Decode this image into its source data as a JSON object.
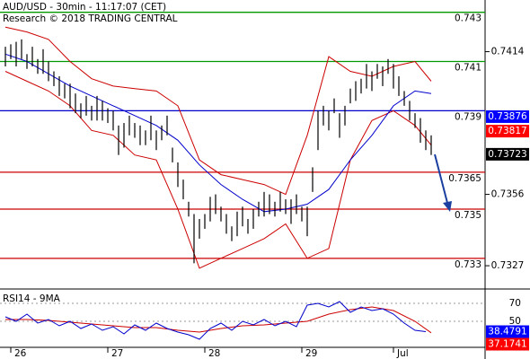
{
  "chart_data": {
    "type": "ohlc",
    "title": "AUD/USD - 30min - 11:17:07 (CET)",
    "subtitle": "Research © 2018 TRADING CENTRAL",
    "xlim": [
      -1,
      89
    ],
    "xticks": [
      {
        "value": 1,
        "label": "26"
      },
      {
        "value": 19,
        "label": "27"
      },
      {
        "value": 37,
        "label": "28"
      },
      {
        "value": 55,
        "label": "29"
      },
      {
        "value": 72,
        "label": "Jul"
      }
    ],
    "ylim": [
      0.7319,
      0.7435
    ],
    "yticks": [
      0.7327,
      0.7356,
      0.7414
    ],
    "bar_color": "#000000",
    "high": [
      0.7416,
      0.7417,
      0.7418,
      0.7419,
      0.7413,
      0.7416,
      0.7411,
      0.7415,
      0.741,
      0.7406,
      0.7404,
      0.7401,
      0.7401,
      0.7397,
      0.7393,
      0.7396,
      0.7392,
      0.7396,
      0.7394,
      0.7391,
      0.739,
      0.7384,
      0.7385,
      0.7388,
      0.7385,
      0.7384,
      0.7382,
      0.7388,
      0.7382,
      0.7384,
      0.7388,
      0.7375,
      0.7369,
      0.7362,
      0.7353,
      0.7348,
      0.7346,
      0.7348,
      0.7355,
      0.7356,
      0.7351,
      0.7348,
      0.7343,
      0.7349,
      0.7351,
      0.7346,
      0.735,
      0.7353,
      0.7357,
      0.7356,
      0.7353,
      0.7357,
      0.7354,
      0.7354,
      0.7356,
      0.7351,
      0.7351,
      0.7367,
      0.739,
      0.7392,
      0.739,
      0.7395,
      0.7389,
      0.7392,
      0.7399,
      0.7402,
      0.7403,
      0.7409,
      0.7406,
      0.7409,
      0.7408,
      0.7411,
      0.7409,
      0.7404,
      0.7398,
      0.7394,
      0.7389,
      0.7387,
      0.7382,
      0.738
    ],
    "low": [
      0.7408,
      0.7411,
      0.7408,
      0.7411,
      0.7407,
      0.7408,
      0.7405,
      0.7405,
      0.7402,
      0.74,
      0.7396,
      0.7395,
      0.7391,
      0.7389,
      0.7387,
      0.7388,
      0.7386,
      0.7386,
      0.7386,
      0.7385,
      0.7382,
      0.7372,
      0.7375,
      0.738,
      0.7379,
      0.7376,
      0.7376,
      0.7378,
      0.7374,
      0.7378,
      0.738,
      0.7369,
      0.7359,
      0.7354,
      0.7347,
      0.7328,
      0.7338,
      0.7342,
      0.7345,
      0.7348,
      0.7345,
      0.734,
      0.7337,
      0.7339,
      0.7343,
      0.734,
      0.7342,
      0.7347,
      0.7347,
      0.7348,
      0.7347,
      0.7349,
      0.7348,
      0.7344,
      0.7348,
      0.7345,
      0.7339,
      0.7357,
      0.7374,
      0.7384,
      0.7382,
      0.7389,
      0.7379,
      0.7384,
      0.7393,
      0.7394,
      0.7397,
      0.7399,
      0.7398,
      0.7403,
      0.74,
      0.7405,
      0.7399,
      0.7396,
      0.7392,
      0.7386,
      0.7383,
      0.7377,
      0.7374,
      0.7372
    ],
    "overlays": [
      {
        "color": "#cc0000",
        "x": [
          0,
          4,
          8,
          12,
          16,
          20,
          24,
          28,
          32,
          36,
          40,
          44,
          48,
          52,
          56,
          60,
          64,
          68,
          72,
          76,
          79
        ],
        "values": [
          0.7424,
          0.7422,
          0.7419,
          0.741,
          0.7403,
          0.74,
          0.7399,
          0.7398,
          0.7392,
          0.737,
          0.7364,
          0.7362,
          0.736,
          0.7356,
          0.738,
          0.7412,
          0.7406,
          0.7404,
          0.7408,
          0.741,
          0.7402
        ]
      },
      {
        "color": "#cc0000",
        "x": [
          0,
          4,
          8,
          12,
          16,
          20,
          24,
          28,
          32,
          36,
          40,
          44,
          48,
          52,
          56,
          60,
          64,
          68,
          72,
          76,
          79
        ],
        "values": [
          0.7406,
          0.7402,
          0.7398,
          0.7392,
          0.7382,
          0.738,
          0.7372,
          0.737,
          0.735,
          0.7326,
          0.733,
          0.7334,
          0.7338,
          0.7344,
          0.733,
          0.7334,
          0.737,
          0.7386,
          0.739,
          0.7384,
          0.7376
        ]
      },
      {
        "color": "#0000cc",
        "x": [
          0,
          4,
          8,
          12,
          16,
          20,
          24,
          28,
          32,
          36,
          40,
          44,
          48,
          52,
          56,
          60,
          64,
          68,
          72,
          76,
          79
        ],
        "values": [
          0.7413,
          0.741,
          0.7405,
          0.74,
          0.7396,
          0.7392,
          0.7388,
          0.7384,
          0.7378,
          0.7368,
          0.736,
          0.7354,
          0.7349,
          0.735,
          0.7352,
          0.7358,
          0.737,
          0.738,
          0.7392,
          0.7398,
          0.7397
        ]
      }
    ],
    "levels": [
      {
        "value": 0.743,
        "color": "#009900"
      },
      {
        "value": 0.741,
        "color": "#009900"
      },
      {
        "value": 0.739,
        "color": "#0000cc"
      },
      {
        "value": 0.7365,
        "color": "#cc0000"
      },
      {
        "value": 0.735,
        "color": "#cc0000"
      },
      {
        "value": 0.733,
        "color": "#cc0000"
      }
    ],
    "price_markers": [
      {
        "value": 0.73876,
        "color": "#0000ff"
      },
      {
        "value": 0.73817,
        "color": "#ff0000"
      },
      {
        "value": 0.73723,
        "color": "#000000"
      }
    ],
    "rsi": {
      "title": "RSI14 - 9MA",
      "ylim": [
        23,
        78
      ],
      "yticks": [
        50,
        70
      ],
      "color": "#0000cc",
      "x": [
        0,
        2,
        4,
        6,
        8,
        10,
        12,
        14,
        16,
        18,
        20,
        22,
        24,
        26,
        28,
        30,
        32,
        34,
        36,
        38,
        40,
        42,
        44,
        46,
        48,
        50,
        52,
        54,
        56,
        58,
        60,
        62,
        64,
        66,
        68,
        70,
        72,
        74,
        76,
        78
      ],
      "values": [
        55,
        50,
        58,
        48,
        52,
        45,
        50,
        42,
        47,
        40,
        44,
        36,
        46,
        40,
        48,
        42,
        38,
        35,
        30,
        42,
        48,
        40,
        50,
        46,
        52,
        45,
        50,
        44,
        68,
        70,
        66,
        72,
        60,
        66,
        62,
        64,
        58,
        48,
        40,
        38.4791
      ],
      "ma_color": "#cc0000",
      "ma_x": [
        0,
        4,
        8,
        12,
        16,
        20,
        24,
        28,
        32,
        36,
        40,
        44,
        48,
        52,
        56,
        60,
        64,
        68,
        72,
        76,
        79
      ],
      "ma_values": [
        52,
        52,
        51,
        49,
        47,
        45,
        43,
        43,
        40,
        38,
        42,
        45,
        46,
        48,
        50,
        58,
        63,
        66,
        62,
        50,
        37.1741
      ],
      "markers": [
        {
          "value": 38.4791,
          "color": "#0000ff"
        },
        {
          "value": 37.1741,
          "color": "#ff0000"
        }
      ]
    }
  }
}
